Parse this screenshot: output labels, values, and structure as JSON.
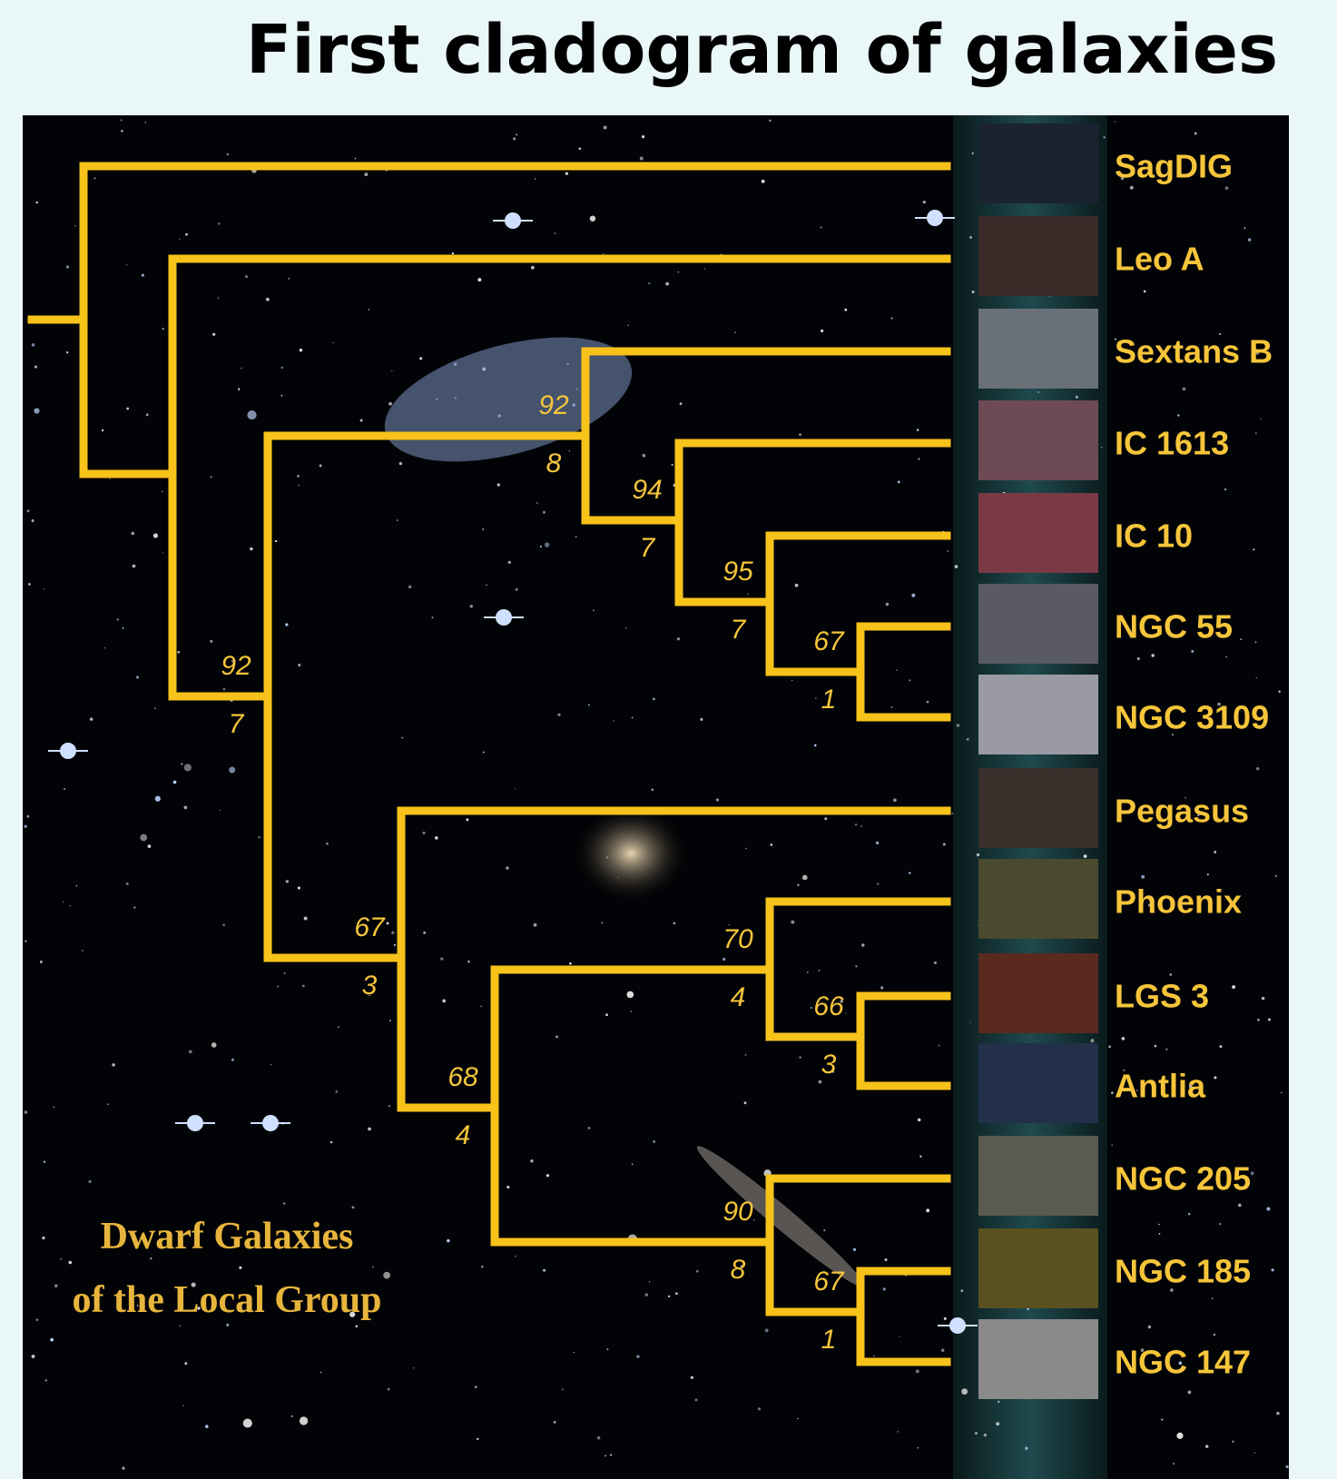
{
  "title": "First cladogram of galaxies",
  "caption": [
    "Dwarf Galaxies",
    "of the Local Group"
  ],
  "leaves": [
    "SagDIG",
    "Leo A",
    "Sextans B",
    "IC 1613",
    "IC 10",
    "NGC 55",
    "NGC 3109",
    "Pegasus",
    "Phoenix",
    "LGS 3",
    "Antlia",
    "NGC 205",
    "NGC 185",
    "NGC 147"
  ],
  "nodes": [
    {
      "upper": 92,
      "lower": 7
    },
    {
      "upper": 92,
      "lower": 8
    },
    {
      "upper": 94,
      "lower": 7
    },
    {
      "upper": 95,
      "lower": 7
    },
    {
      "upper": 67,
      "lower": 1
    },
    {
      "upper": 67,
      "lower": 3
    },
    {
      "upper": 68,
      "lower": 4
    },
    {
      "upper": 70,
      "lower": 4
    },
    {
      "upper": 66,
      "lower": 3
    },
    {
      "upper": 90,
      "lower": 8
    },
    {
      "upper": 67,
      "lower": 1
    }
  ]
}
